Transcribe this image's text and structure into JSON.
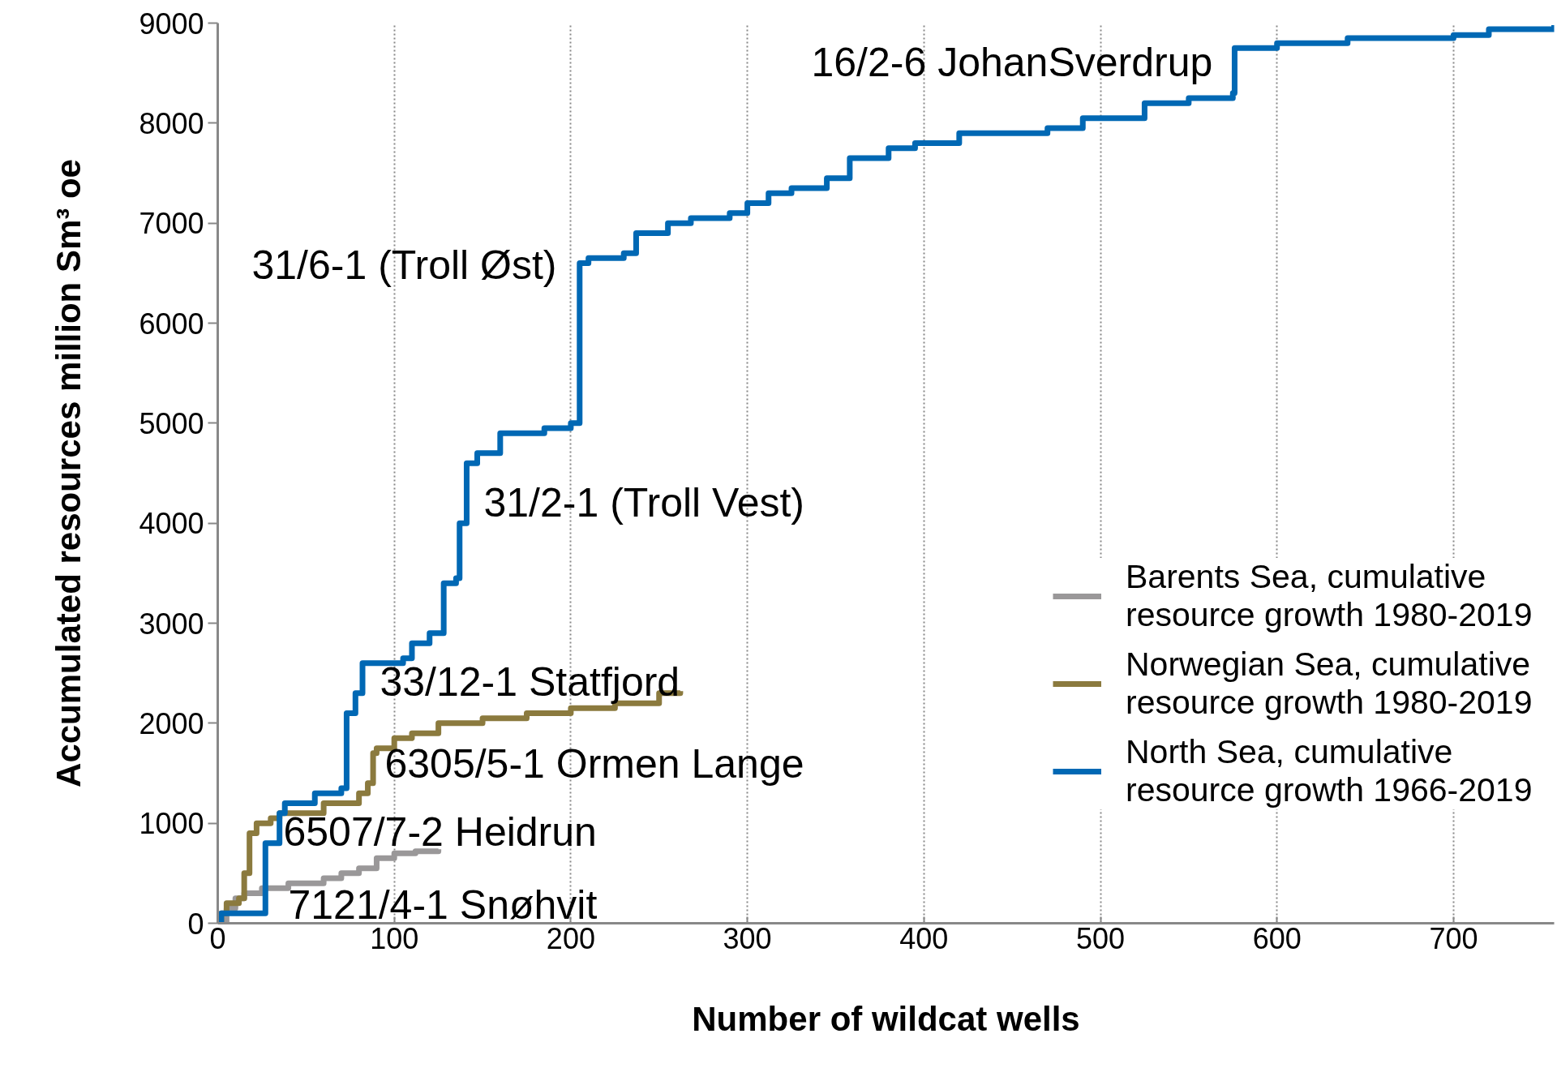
{
  "chart_data": {
    "type": "step",
    "xlabel": "Number of wildcat wells",
    "ylabel": "Accumulated resources million Sm³ oe",
    "xlim": [
      0,
      757
    ],
    "ylim": [
      0,
      9000
    ],
    "xticks": [
      0,
      100,
      200,
      300,
      400,
      500,
      600,
      700
    ],
    "yticks": [
      0,
      1000,
      2000,
      3000,
      4000,
      5000,
      6000,
      7000,
      8000,
      9000
    ],
    "grid": "x",
    "legend": "right",
    "line_style": "solid",
    "marker": "none",
    "series": [
      {
        "name": "Barents Sea, cumulative resource growth 1980-2019",
        "color": "#9a9899",
        "x": [
          0,
          5,
          10,
          15,
          25,
          40,
          60,
          70,
          80,
          90,
          100,
          112,
          125
        ],
        "values": [
          0,
          150,
          250,
          300,
          350,
          400,
          450,
          500,
          550,
          650,
          700,
          720,
          740
        ]
      },
      {
        "name": "Norwegian Sea, cumulative resource growth 1980-2019",
        "color": "#8b7a3e",
        "x": [
          0,
          2,
          5,
          12,
          15,
          18,
          22,
          30,
          35,
          60,
          80,
          85,
          88,
          90,
          100,
          110,
          125,
          150,
          175,
          200,
          225,
          250,
          262
        ],
        "values": [
          0,
          100,
          200,
          250,
          500,
          900,
          1000,
          1050,
          1100,
          1200,
          1300,
          1400,
          1700,
          1750,
          1850,
          1900,
          2000,
          2050,
          2100,
          2150,
          2200,
          2300,
          2320
        ]
      },
      {
        "name": "North Sea, cumulative resource growth 1966-2019",
        "color": "#0068b4",
        "x": [
          0,
          2,
          27,
          35,
          38,
          55,
          70,
          73,
          78,
          82,
          105,
          110,
          120,
          128,
          135,
          137,
          141,
          147,
          160,
          185,
          200,
          205,
          210,
          230,
          237,
          255,
          268,
          290,
          300,
          312,
          325,
          345,
          358,
          380,
          395,
          420,
          470,
          490,
          525,
          550,
          575,
          576,
          600,
          640,
          700,
          720,
          757
        ],
        "values": [
          0,
          100,
          800,
          1100,
          1200,
          1300,
          1350,
          2100,
          2300,
          2600,
          2650,
          2800,
          2900,
          3400,
          3450,
          4000,
          4600,
          4700,
          4900,
          4950,
          5000,
          6600,
          6650,
          6700,
          6900,
          7000,
          7050,
          7100,
          7200,
          7300,
          7350,
          7450,
          7650,
          7750,
          7800,
          7900,
          7950,
          8050,
          8200,
          8250,
          8300,
          8750,
          8800,
          8850,
          8880,
          8940,
          8980
        ]
      }
    ],
    "annotations": [
      "16/2-6 JohanSverdrup",
      "31/6-1 (Troll Øst)",
      "31/2-1 (Troll Vest)",
      "33/12-1 Statfjord",
      "6305/5-1 Ormen Lange",
      "6507/7-2 Heidrun",
      "7121/4-1 Snøhvit"
    ]
  }
}
